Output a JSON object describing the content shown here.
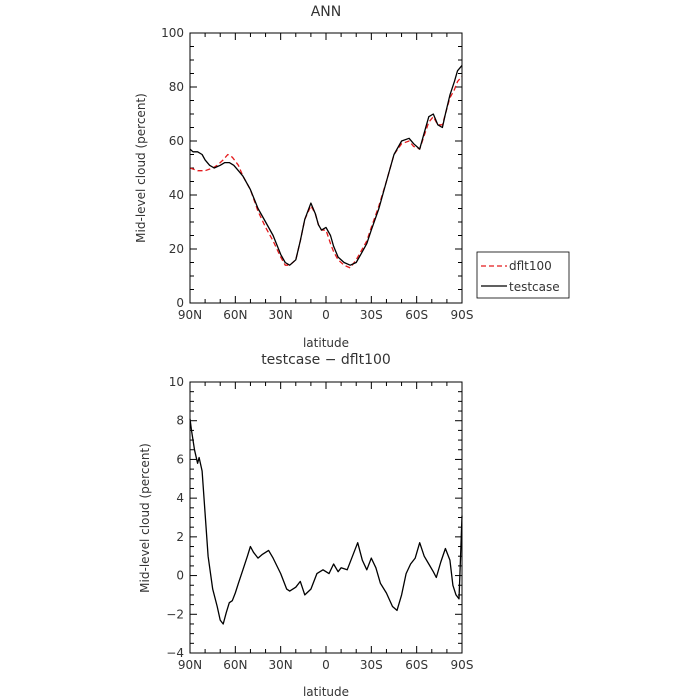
{
  "chart_data": [
    {
      "type": "line",
      "title": "ANN",
      "xlabel": "latitude",
      "ylabel": "Mid-level cloud (percent)",
      "xlim": [
        90,
        -90
      ],
      "ylim": [
        0,
        100
      ],
      "x_ticks": [
        90,
        60,
        30,
        0,
        -30,
        -60,
        -90
      ],
      "x_tick_labels": [
        "90N",
        "60N",
        "30N",
        "0",
        "30S",
        "60S",
        "90S"
      ],
      "y_ticks": [
        0,
        20,
        40,
        60,
        80,
        100
      ],
      "y_tick_labels": [
        "0",
        "20",
        "40",
        "60",
        "80",
        "100"
      ],
      "legend_position": "right",
      "series": [
        {
          "name": "dflt100",
          "color": "#e41a1c",
          "dash": "dashed",
          "x": [
            90,
            85,
            80,
            75,
            72,
            68,
            65,
            62,
            58,
            55,
            50,
            45,
            40,
            35,
            30,
            27,
            24,
            20,
            17,
            14,
            10,
            7,
            5,
            3,
            0,
            -3,
            -5,
            -8,
            -12,
            -16,
            -20,
            -23,
            -27,
            -30,
            -35,
            -40,
            -45,
            -50,
            -55,
            -58,
            -62,
            -65,
            -68,
            -71,
            -74,
            -77,
            -79,
            -82,
            -85,
            -87,
            -90
          ],
          "y": [
            50,
            49,
            49,
            50,
            51,
            53,
            55,
            54,
            51,
            47,
            42,
            34,
            28,
            23,
            17,
            14,
            14,
            16,
            23,
            31,
            36,
            33,
            29,
            27,
            27,
            22,
            19,
            16,
            14,
            13,
            16,
            19,
            23,
            28,
            36,
            45,
            55,
            59,
            60,
            58,
            57,
            62,
            67,
            69,
            66,
            66,
            70,
            76,
            79,
            82,
            84
          ]
        },
        {
          "name": "testcase",
          "color": "#000000",
          "dash": "solid",
          "x": [
            90,
            88,
            85,
            82,
            80,
            77,
            74,
            70,
            67,
            64,
            61,
            58,
            55,
            50,
            45,
            40,
            35,
            30,
            27,
            24,
            20,
            17,
            14,
            10,
            7,
            5,
            3,
            0,
            -3,
            -5,
            -8,
            -12,
            -16,
            -20,
            -23,
            -27,
            -30,
            -35,
            -40,
            -45,
            -50,
            -55,
            -58,
            -62,
            -65,
            -68,
            -71,
            -74,
            -77,
            -79,
            -82,
            -85,
            -87,
            -90
          ],
          "y": [
            57,
            56,
            56,
            55,
            53,
            51,
            50,
            51,
            52,
            52,
            51,
            49,
            47,
            42,
            35,
            30,
            25,
            18,
            15,
            14,
            16,
            23,
            31,
            37,
            33,
            29,
            27,
            28,
            25,
            21,
            17,
            15,
            14,
            15,
            18,
            22,
            27,
            35,
            45,
            55,
            60,
            61,
            59,
            57,
            63,
            69,
            70,
            66,
            65,
            70,
            77,
            82,
            86,
            88
          ]
        }
      ]
    },
    {
      "type": "line",
      "title": "testcase − dflt100",
      "xlabel": "latitude",
      "ylabel": "Mid-level cloud (percent)",
      "xlim": [
        90,
        -90
      ],
      "ylim": [
        -4,
        10
      ],
      "x_ticks": [
        90,
        60,
        30,
        0,
        -30,
        -60,
        -90
      ],
      "x_tick_labels": [
        "90N",
        "60N",
        "30N",
        "0",
        "30S",
        "60S",
        "90S"
      ],
      "y_ticks": [
        -4,
        -2,
        0,
        2,
        4,
        6,
        8,
        10
      ],
      "y_tick_labels": [
        "−4",
        "−2",
        "0",
        "2",
        "4",
        "6",
        "8",
        "10"
      ],
      "series": [
        {
          "color": "#000000",
          "dash": "solid",
          "x": [
            90,
            89,
            87,
            85,
            84,
            82,
            80,
            78,
            75,
            72,
            70,
            68,
            66,
            64,
            62,
            60,
            58,
            55,
            52,
            50,
            48,
            45,
            42,
            38,
            35,
            30,
            26,
            24,
            20,
            17,
            14,
            10,
            6,
            2,
            -2,
            -5,
            -8,
            -10,
            -14,
            -18,
            -21,
            -24,
            -27,
            -30,
            -33,
            -36,
            -40,
            -44,
            -47,
            -50,
            -53,
            -56,
            -59,
            -62,
            -65,
            -68,
            -71,
            -73,
            -76,
            -79,
            -82,
            -84,
            -86,
            -88,
            -89,
            -90
          ],
          "y": [
            8.1,
            7.5,
            6.5,
            5.8,
            6.1,
            5.4,
            3.2,
            1.0,
            -0.7,
            -1.6,
            -2.3,
            -2.5,
            -1.9,
            -1.4,
            -1.3,
            -0.9,
            -0.4,
            0.3,
            1.0,
            1.5,
            1.2,
            0.9,
            1.1,
            1.3,
            0.9,
            0.1,
            -0.7,
            -0.8,
            -0.6,
            -0.3,
            -1.0,
            -0.7,
            0.1,
            0.3,
            0.1,
            0.6,
            0.2,
            0.4,
            0.3,
            1.1,
            1.7,
            0.8,
            0.3,
            0.9,
            0.4,
            -0.4,
            -0.9,
            -1.6,
            -1.8,
            -1.0,
            0.1,
            0.6,
            0.9,
            1.7,
            1.0,
            0.6,
            0.2,
            -0.1,
            0.7,
            1.4,
            0.8,
            -0.5,
            -1.0,
            -1.2,
            0.9,
            3.1
          ]
        }
      ]
    }
  ]
}
